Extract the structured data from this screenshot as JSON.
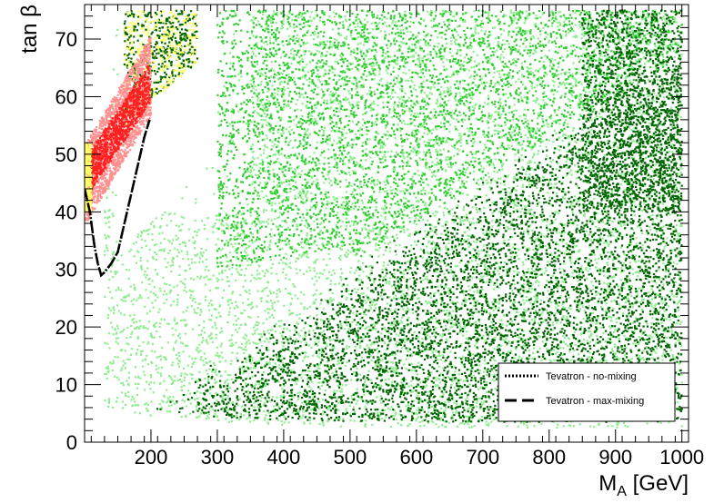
{
  "chart_data": {
    "type": "scatter",
    "xlabel": "M_A [GeV]",
    "xlabel_main": "M",
    "xlabel_sub": "A",
    "xlabel_rest": " [GeV]",
    "ylabel": "tan β",
    "xlim": [
      100,
      1010
    ],
    "ylim": [
      0,
      76
    ],
    "x_ticks": [
      "200",
      "300",
      "400",
      "500",
      "600",
      "700",
      "800",
      "900",
      "1000"
    ],
    "y_ticks": [
      "0",
      "10",
      "20",
      "30",
      "40",
      "50",
      "60",
      "70"
    ],
    "grid": false,
    "legend_placement": "bottom-right",
    "colors": {
      "dark_green": "#006400",
      "medium_green": "#32cd32",
      "light_green": "#90ee90",
      "yellow": "#ffff66",
      "red": "#ff2020",
      "pink": "#ff9090"
    },
    "regions": [
      {
        "color": "light_green",
        "x": [
          130,
          1000
        ],
        "y": [
          3,
          75
        ]
      },
      {
        "color": "medium_green",
        "x": [
          300,
          1000
        ],
        "y": [
          4,
          75
        ]
      },
      {
        "color": "dark_green",
        "x": [
          180,
          1000
        ],
        "y": [
          4,
          75
        ]
      },
      {
        "color": "yellow",
        "x": [
          100,
          290
        ],
        "y": [
          40,
          75
        ]
      },
      {
        "color": "pink",
        "x": [
          100,
          200
        ],
        "y": [
          40,
          66
        ]
      },
      {
        "color": "red",
        "x": [
          108,
          200
        ],
        "y": [
          45,
          65
        ]
      }
    ],
    "series": [
      {
        "name": "Tevatron - no-mixing",
        "style": "dotted",
        "x": [
          100,
          108,
          115,
          120,
          125,
          130,
          140,
          150,
          160,
          170,
          180,
          190,
          198
        ],
        "y": [
          44,
          40,
          34,
          31,
          29,
          29.5,
          31,
          33,
          38,
          43,
          48,
          53,
          56
        ]
      },
      {
        "name": "Tevatron - max-mixing",
        "style": "dashed",
        "x": [
          100,
          108,
          115,
          120,
          125,
          130,
          140,
          150,
          160,
          170,
          180,
          190,
          198
        ],
        "y": [
          44,
          40,
          34,
          31,
          29,
          29.5,
          31,
          33,
          38,
          43,
          48,
          53,
          56
        ]
      }
    ]
  }
}
